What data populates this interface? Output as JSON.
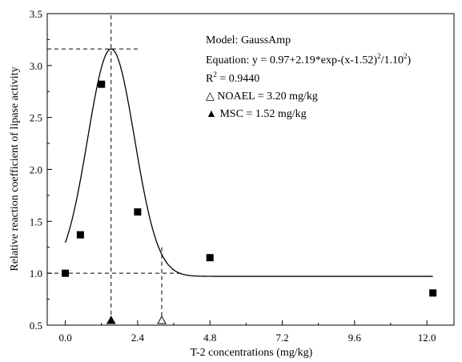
{
  "chart_data": {
    "type": "scatter",
    "xlabel": "T-2 concentrations (mg/kg)",
    "ylabel": "Relative reaction coefficient of lipase activity",
    "xlim": [
      -0.6,
      12.9
    ],
    "ylim": [
      0.5,
      3.5
    ],
    "x_ticks": [
      "0.0",
      "2.4",
      "4.8",
      "7.2",
      "9.6",
      "12.0"
    ],
    "x_tick_values": [
      0.0,
      2.4,
      4.8,
      7.2,
      9.6,
      12.0
    ],
    "y_ticks": [
      "0.5",
      "1.0",
      "1.5",
      "2.0",
      "2.5",
      "3.0",
      "3.5"
    ],
    "y_tick_values": [
      0.5,
      1.0,
      1.5,
      2.0,
      2.5,
      3.0,
      3.5
    ],
    "points": [
      {
        "x": 0.0,
        "y": 1.0
      },
      {
        "x": 0.5,
        "y": 1.37
      },
      {
        "x": 1.2,
        "y": 2.82
      },
      {
        "x": 2.4,
        "y": 1.59
      },
      {
        "x": 4.8,
        "y": 1.15
      },
      {
        "x": 12.2,
        "y": 0.81
      }
    ],
    "fit": {
      "model": "GaussAmp",
      "y0": 0.97,
      "A": 2.19,
      "xc": 1.52,
      "w": 1.1
    },
    "reference_lines": {
      "peak_y": 3.16,
      "baseline_y": 1.0,
      "msc_x": 1.52,
      "noael_x": 3.2
    },
    "markers": {
      "msc": {
        "x": 1.52,
        "symbol": "filled-triangle"
      },
      "noael": {
        "x": 3.2,
        "symbol": "open-triangle"
      }
    },
    "annotations": {
      "model": "Model: GaussAmp",
      "equation_prefix": "Equation: y = 0.97+2.19*exp-(x-1.52)",
      "equation_exp1": "2",
      "equation_mid": "/1.10",
      "equation_exp2": "2",
      "equation_suffix": ")",
      "r2_prefix": "R",
      "r2_exp": "2",
      "r2_value": " = 0.9440",
      "noael_symbol": "△",
      "noael_text": " NOAEL = 3.20 mg/kg",
      "msc_symbol": "▲",
      "msc_text": " MSC = 1.52 mg/kg"
    }
  }
}
